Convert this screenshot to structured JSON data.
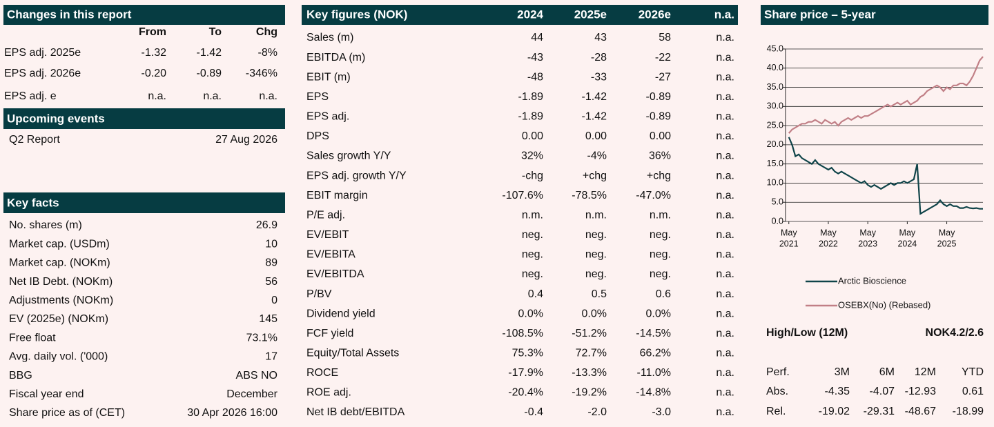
{
  "changes": {
    "title": "Changes in this report",
    "columns": [
      "From",
      "To",
      "Chg"
    ],
    "rows": [
      [
        "EPS adj. 2025e",
        "-1.32",
        "-1.42",
        "-8%"
      ],
      [
        "EPS adj. 2026e",
        "-0.20",
        "-0.89",
        "-346%"
      ],
      [
        "EPS adj. e",
        "n.a.",
        "n.a.",
        "n.a."
      ]
    ]
  },
  "upcoming": {
    "title": "Upcoming events",
    "rows": [
      [
        "Q2 Report",
        "27 Aug 2026"
      ]
    ]
  },
  "key_facts": {
    "title": "Key facts",
    "rows": [
      [
        "No. shares (m)",
        "26.9"
      ],
      [
        "Market cap. (USDm)",
        "10"
      ],
      [
        "Market cap. (NOKm)",
        "89"
      ],
      [
        "Net IB Debt. (NOKm)",
        "56"
      ],
      [
        "Adjustments (NOKm)",
        "0"
      ],
      [
        "EV (2025e) (NOKm)",
        "145"
      ],
      [
        "Free float",
        "73.1%"
      ],
      [
        "Avg. daily vol. ('000)",
        "17"
      ],
      [
        "BBG",
        "ABS NO"
      ],
      [
        "Fiscal year end",
        "December"
      ],
      [
        "Share price as of (CET)",
        "30 Apr 2026 16:00"
      ]
    ]
  },
  "key_figures": {
    "columns": [
      "Key figures (NOK)",
      "2024",
      "2025e",
      "2026e",
      "n.a."
    ],
    "rows": [
      [
        "Sales (m)",
        "44",
        "43",
        "58",
        "n.a."
      ],
      [
        "EBITDA (m)",
        "-43",
        "-28",
        "-22",
        "n.a."
      ],
      [
        "EBIT (m)",
        "-48",
        "-33",
        "-27",
        "n.a."
      ],
      [
        "EPS",
        "-1.89",
        "-1.42",
        "-0.89",
        "n.a."
      ],
      [
        "EPS adj.",
        "-1.89",
        "-1.42",
        "-0.89",
        "n.a."
      ],
      [
        "DPS",
        "0.00",
        "0.00",
        "0.00",
        "n.a."
      ],
      [
        "Sales growth Y/Y",
        "32%",
        "-4%",
        "36%",
        "n.a."
      ],
      [
        "EPS adj. growth Y/Y",
        "-chg",
        "+chg",
        "+chg",
        "n.a."
      ],
      [
        "EBIT margin",
        "-107.6%",
        "-78.5%",
        "-47.0%",
        "n.a."
      ],
      [
        "P/E adj.",
        "n.m.",
        "n.m.",
        "n.m.",
        "n.a."
      ],
      [
        "EV/EBIT",
        "neg.",
        "neg.",
        "neg.",
        "n.a."
      ],
      [
        "EV/EBITA",
        "neg.",
        "neg.",
        "neg.",
        "n.a."
      ],
      [
        "EV/EBITDA",
        "neg.",
        "neg.",
        "neg.",
        "n.a."
      ],
      [
        "P/BV",
        "0.4",
        "0.5",
        "0.6",
        "n.a."
      ],
      [
        "Dividend yield",
        "0.0%",
        "0.0%",
        "0.0%",
        "n.a."
      ],
      [
        "FCF yield",
        "-108.5%",
        "-51.2%",
        "-14.5%",
        "n.a."
      ],
      [
        "Equity/Total  Assets",
        "75.3%",
        "72.7%",
        "66.2%",
        "n.a."
      ],
      [
        "ROCE",
        "-17.9%",
        "-13.3%",
        "-11.0%",
        "n.a."
      ],
      [
        "ROE adj.",
        "-20.4%",
        "-19.2%",
        "-14.8%",
        "n.a."
      ],
      [
        "Net IB debt/EBITDA",
        "-0.4",
        "-2.0",
        "-3.0",
        "n.a."
      ]
    ]
  },
  "chart_data": {
    "type": "line",
    "title": "Share price – 5-year",
    "x": [
      0,
      1,
      2,
      3,
      4,
      5,
      6,
      7,
      8,
      9,
      10,
      11,
      12,
      13,
      14,
      15,
      16,
      17,
      18,
      19,
      20,
      21,
      22,
      23,
      24,
      25,
      26,
      27,
      28,
      29,
      30,
      31,
      32,
      33,
      34,
      35,
      36,
      37,
      38,
      39,
      40,
      41,
      42,
      43,
      44,
      45,
      46,
      47,
      48,
      49,
      50,
      51,
      52,
      53,
      54,
      55,
      56,
      57,
      58,
      59
    ],
    "xlim": [
      -1,
      59
    ],
    "xticks": [
      {
        "value": 0,
        "label": "May",
        "sublabel": "2021"
      },
      {
        "value": 12,
        "label": "May",
        "sublabel": "2022"
      },
      {
        "value": 24,
        "label": "May",
        "sublabel": "2023"
      },
      {
        "value": 36,
        "label": "May",
        "sublabel": "2024"
      },
      {
        "value": 48,
        "label": "May",
        "sublabel": "2025"
      }
    ],
    "ylim": [
      0,
      45
    ],
    "yticks": [
      {
        "value": 0,
        "label": "0.0"
      },
      {
        "value": 5,
        "label": "5.0"
      },
      {
        "value": 10,
        "label": "10.0"
      },
      {
        "value": 15,
        "label": "15.0"
      },
      {
        "value": 20,
        "label": "20.0"
      },
      {
        "value": 25,
        "label": "25.0"
      },
      {
        "value": 30,
        "label": "30.0"
      },
      {
        "value": 35,
        "label": "35.0"
      },
      {
        "value": 40,
        "label": "40.0"
      },
      {
        "value": 45,
        "label": "45.0"
      }
    ],
    "grid": true,
    "series": [
      {
        "name": "Arctic Bioscience",
        "color": "#0f4449",
        "values": [
          22,
          20,
          17,
          17.5,
          16.5,
          16,
          15.5,
          15,
          16,
          15,
          14.5,
          14,
          13.5,
          14,
          13,
          12.5,
          13,
          12.5,
          12,
          11.5,
          11,
          10.5,
          10,
          10.5,
          9.5,
          9,
          9.5,
          9,
          8.5,
          9,
          9.5,
          10,
          9.5,
          10,
          10,
          10.5,
          10,
          10.5,
          11,
          15,
          2,
          2.5,
          3,
          3.5,
          4,
          4.5,
          5.5,
          4.5,
          4,
          4.5,
          4,
          4,
          3.5,
          3.5,
          3.8,
          3.5,
          3.4,
          3.5,
          3.3,
          3.3
        ]
      },
      {
        "name": "OSEBX(No) (Rebased)",
        "color": "#c17f86",
        "values": [
          23,
          24,
          24.5,
          25,
          25.5,
          25.5,
          26,
          26,
          26.5,
          26,
          25.5,
          26.5,
          26,
          25.5,
          26,
          25,
          26,
          26.5,
          27,
          26.5,
          27,
          27.5,
          27,
          27.5,
          27.5,
          28,
          28.5,
          29,
          29.5,
          30,
          30.5,
          30,
          30.5,
          31,
          30.5,
          31,
          31.5,
          30.5,
          31,
          31.5,
          32.5,
          33,
          34,
          34.5,
          35,
          35.5,
          35,
          34,
          35,
          34.5,
          35.5,
          35.5,
          36,
          36,
          35.5,
          36.5,
          38,
          40,
          42,
          43
        ]
      }
    ]
  },
  "high_low": {
    "label": "High/Low (12M)",
    "value": "NOK4.2/2.6"
  },
  "perf": {
    "columns": [
      "Perf.",
      "3M",
      "6M",
      "12M",
      "YTD"
    ],
    "rows": [
      [
        "Abs.",
        "-4.35",
        "-4.07",
        "-12.93",
        "0.61"
      ],
      [
        "Rel.",
        "-19.02",
        "-29.31",
        "-48.67",
        "-18.99"
      ]
    ]
  }
}
